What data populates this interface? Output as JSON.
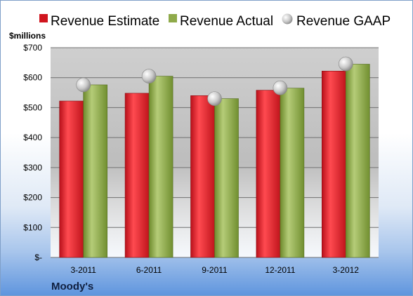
{
  "chart_data": {
    "type": "bar",
    "title": "",
    "company": "Moody's",
    "unit_label": "$millions",
    "categories": [
      "3-2011",
      "6-2011",
      "9-2011",
      "12-2011",
      "3-2012"
    ],
    "series": [
      {
        "name": "Revenue Estimate",
        "kind": "bar",
        "color": "#e8202a",
        "values": [
          522,
          548,
          540,
          558,
          622
        ]
      },
      {
        "name": "Revenue Actual",
        "kind": "bar",
        "color": "#8faa4a",
        "values": [
          576,
          605,
          530,
          565,
          645
        ]
      },
      {
        "name": "Revenue GAAP",
        "kind": "marker",
        "color": "#c8c8c8",
        "values": [
          576,
          605,
          530,
          566,
          646
        ]
      }
    ],
    "ylim": [
      0,
      700
    ],
    "yticks": [
      0,
      100,
      200,
      300,
      400,
      500,
      600,
      700
    ],
    "ytick_labels": [
      "$-",
      "$100",
      "$200",
      "$300",
      "$400",
      "$500",
      "$600",
      "$700"
    ],
    "grid": true,
    "legend_position": "top"
  }
}
